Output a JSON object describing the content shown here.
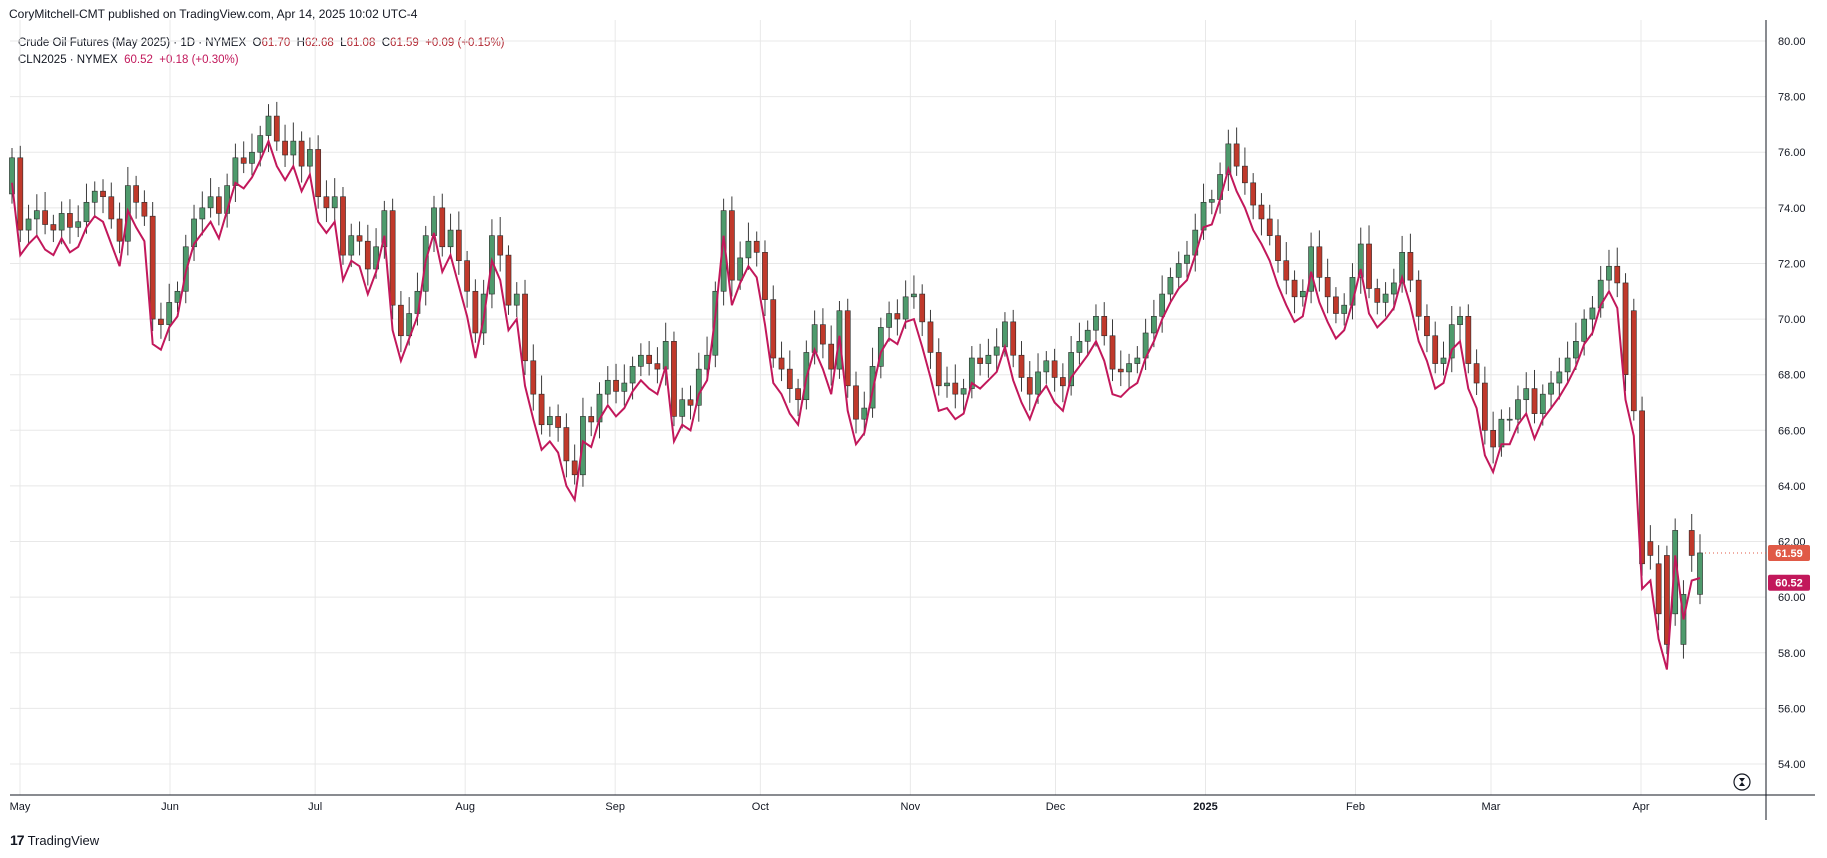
{
  "header": {
    "published": "CoryMitchell-CMT published on TradingView.com, Apr 14, 2025 10:02 UTC-4"
  },
  "legend": {
    "main": {
      "name": "Crude Oil Futures (May 2025) · 1D · NYMEX",
      "open_label": "O",
      "open": "61.70",
      "high_label": "H",
      "high": "62.68",
      "low_label": "L",
      "low": "61.08",
      "close_label": "C",
      "close": "61.59",
      "change": "+0.09 (+0.15%)"
    },
    "second": {
      "name": "CLN2025 · NYMEX",
      "last": "60.52",
      "change": "+0.18 (+0.30%)"
    }
  },
  "footer": {
    "brand": "TradingView"
  },
  "colors": {
    "up": "#4e9a6c",
    "down": "#c0392b",
    "line": "#c2185b",
    "grid": "#e8e8e8",
    "last_tag": "#e05a47",
    "line_tag": "#c2185b"
  },
  "chart_data": {
    "type": "candlestick-with-line",
    "yaxis_ticks": [
      "80.00",
      "78.00",
      "76.00",
      "74.00",
      "72.00",
      "70.00",
      "68.00",
      "66.00",
      "64.00",
      "62.00",
      "60.00",
      "58.00",
      "56.00",
      "54.00"
    ],
    "ylim": [
      52.8,
      80.6
    ],
    "xaxis_ticks": [
      {
        "label": "May",
        "day": 0
      },
      {
        "label": "Jun",
        "day": 31
      },
      {
        "label": "Jul",
        "day": 61
      },
      {
        "label": "Aug",
        "day": 92
      },
      {
        "label": "Sep",
        "day": 123
      },
      {
        "label": "Oct",
        "day": 153
      },
      {
        "label": "Nov",
        "day": 184
      },
      {
        "label": "Dec",
        "day": 214
      },
      {
        "label": "2025",
        "day": 245,
        "bold": true
      },
      {
        "label": "Feb",
        "day": 276
      },
      {
        "label": "Mar",
        "day": 304
      },
      {
        "label": "Apr",
        "day": 335
      }
    ],
    "last_price": "61.59",
    "line_last": "60.52",
    "series": [
      {
        "name": "Crude Oil Futures (May 2025)",
        "kind": "candles",
        "closes": [
          75.8,
          73.2,
          73.6,
          73.9,
          73.4,
          73.2,
          73.8,
          73.3,
          73.5,
          74.2,
          74.6,
          74.4,
          73.6,
          72.8,
          74.8,
          74.2,
          73.7,
          70.0,
          69.8,
          70.6,
          71.0,
          72.6,
          73.6,
          74.0,
          74.4,
          73.8,
          74.8,
          75.8,
          75.6,
          76.0,
          76.6,
          77.3,
          76.4,
          75.9,
          76.4,
          75.5,
          76.1,
          74.4,
          74.0,
          74.4,
          72.3,
          73.0,
          72.8,
          71.8,
          72.6,
          73.9,
          70.5,
          69.4,
          70.2,
          71.0,
          73.0,
          74.0,
          72.6,
          73.2,
          72.1,
          71.0,
          69.5,
          70.9,
          73.0,
          72.3,
          70.5,
          70.9,
          68.5,
          67.3,
          66.2,
          66.5,
          66.1,
          64.9,
          64.4,
          66.5,
          66.3,
          67.3,
          67.8,
          67.4,
          67.7,
          68.3,
          68.7,
          68.4,
          68.2,
          69.2,
          66.5,
          67.1,
          66.9,
          68.2,
          68.7,
          71.0,
          73.9,
          71.4,
          72.2,
          72.8,
          72.4,
          70.7,
          68.6,
          68.2,
          67.5,
          67.1,
          68.8,
          69.8,
          69.1,
          68.2,
          70.3,
          67.6,
          66.4,
          66.8,
          68.3,
          69.7,
          70.2,
          70.0,
          70.8,
          70.9,
          69.9,
          68.8,
          67.6,
          67.7,
          67.3,
          67.5,
          68.6,
          68.4,
          68.7,
          69.0,
          69.9,
          68.7,
          67.9,
          67.3,
          68.1,
          68.5,
          67.9,
          67.6,
          68.8,
          69.2,
          69.6,
          70.1,
          69.4,
          68.2,
          68.1,
          68.4,
          68.6,
          69.5,
          70.1,
          70.9,
          71.5,
          72.0,
          72.3,
          73.2,
          74.2,
          74.3,
          75.2,
          76.3,
          75.5,
          74.9,
          74.1,
          73.6,
          73.0,
          72.1,
          71.4,
          70.8,
          71.0,
          72.6,
          71.5,
          70.8,
          70.2,
          70.5,
          71.5,
          72.7,
          71.1,
          70.6,
          70.9,
          71.3,
          72.4,
          71.4,
          70.1,
          69.4,
          68.4,
          68.6,
          69.8,
          70.1,
          68.4,
          67.7,
          66.0,
          65.4,
          66.4,
          66.4,
          67.1,
          67.5,
          66.6,
          67.3,
          67.7,
          68.1,
          68.6,
          69.2,
          70.0,
          70.4,
          71.4,
          71.9,
          71.3,
          68.0,
          66.7,
          61.2,
          61.5,
          59.4,
          58.3,
          62.4,
          60.1,
          61.5,
          61.59
        ],
        "opens": [
          74.5,
          75.8,
          73.2,
          73.6,
          73.9,
          73.4,
          73.2,
          73.8,
          73.3,
          73.5,
          74.2,
          74.6,
          74.4,
          73.6,
          72.8,
          74.8,
          74.2,
          73.7,
          70.0,
          69.8,
          70.6,
          71.0,
          72.6,
          73.6,
          74.0,
          74.4,
          73.8,
          74.8,
          75.8,
          75.6,
          76.0,
          76.6,
          77.3,
          76.4,
          75.9,
          76.4,
          75.5,
          76.1,
          74.4,
          74.0,
          74.4,
          72.3,
          73.0,
          72.8,
          71.8,
          72.6,
          73.9,
          70.5,
          69.4,
          70.2,
          71.0,
          73.0,
          74.0,
          72.6,
          73.2,
          72.1,
          71.0,
          69.5,
          70.9,
          73.0,
          72.3,
          70.5,
          70.9,
          68.5,
          67.3,
          66.2,
          66.5,
          66.1,
          64.9,
          64.4,
          66.5,
          66.3,
          67.3,
          67.8,
          67.4,
          67.7,
          68.3,
          68.7,
          68.4,
          68.2,
          69.2,
          66.5,
          67.1,
          66.9,
          68.2,
          68.7,
          71.0,
          73.9,
          71.4,
          72.2,
          72.8,
          72.4,
          70.7,
          68.6,
          68.2,
          67.5,
          67.1,
          68.8,
          69.8,
          69.1,
          68.2,
          70.3,
          67.6,
          66.4,
          66.8,
          68.3,
          69.7,
          70.2,
          70.0,
          70.8,
          70.9,
          69.9,
          68.8,
          67.6,
          67.7,
          67.3,
          67.5,
          68.6,
          68.4,
          68.7,
          69.0,
          69.9,
          68.7,
          67.9,
          67.3,
          68.1,
          68.5,
          67.9,
          67.6,
          68.8,
          69.2,
          69.6,
          70.1,
          69.4,
          68.2,
          68.1,
          68.4,
          68.6,
          69.5,
          70.1,
          70.9,
          71.5,
          72.0,
          72.3,
          73.2,
          74.2,
          74.3,
          75.2,
          76.3,
          75.5,
          74.9,
          74.1,
          73.6,
          73.0,
          72.1,
          71.4,
          70.8,
          71.0,
          72.6,
          71.5,
          70.8,
          70.2,
          70.5,
          71.5,
          72.7,
          71.1,
          70.6,
          70.9,
          71.3,
          72.4,
          71.4,
          70.1,
          69.4,
          68.4,
          68.6,
          69.8,
          70.1,
          68.4,
          67.7,
          66.0,
          65.4,
          66.4,
          66.4,
          67.1,
          67.5,
          66.6,
          67.3,
          67.7,
          68.1,
          68.6,
          69.2,
          70.0,
          70.4,
          71.4,
          71.9,
          71.3,
          70.3,
          66.7,
          62.0,
          61.2,
          61.5,
          59.4,
          58.3,
          62.4,
          60.1,
          61.7
        ]
      },
      {
        "name": "CLN2025",
        "kind": "line"
      }
    ]
  }
}
